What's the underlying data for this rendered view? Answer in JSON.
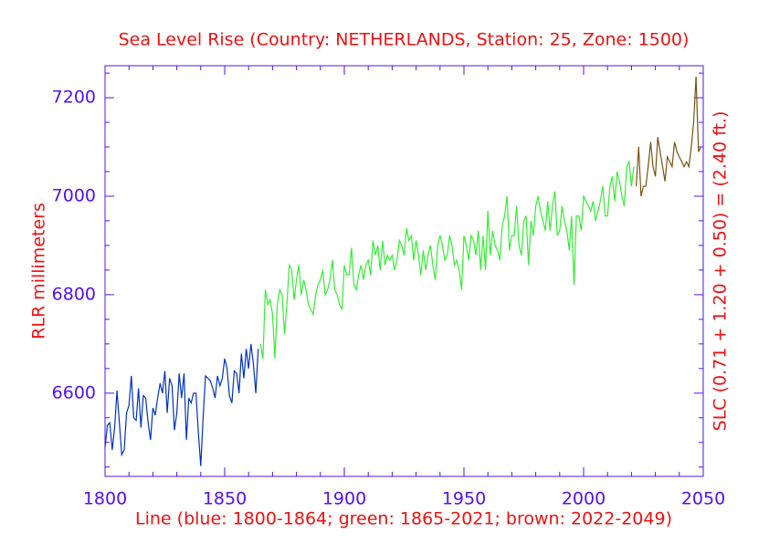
{
  "chart_data": {
    "type": "line",
    "title": "Sea Level Rise (Country: NETHERLANDS, Station: 25, Zone: 1500)",
    "ylabel": "RLR millimeters",
    "y2label": "SLC (0.71 + 1.20 + 0.50) = (2.40 ft.)",
    "xlabel": "Line (blue: 1800-1864; green: 1865-2021; brown: 2022-2049)",
    "xlim": [
      1800,
      2050
    ],
    "ylim": [
      6431,
      7265
    ],
    "xticks": [
      1800,
      1850,
      1900,
      1950,
      2000,
      2050
    ],
    "yticks": [
      6600,
      6800,
      7000,
      7200
    ],
    "xminorticks": [
      1810,
      1820,
      1830,
      1840,
      1860,
      1870,
      1880,
      1890,
      1910,
      1920,
      1930,
      1940,
      1960,
      1970,
      1980,
      1990,
      2010,
      2020,
      2030,
      2040
    ],
    "yminorticks": [
      6450,
      6500,
      6550,
      6650,
      6700,
      6750,
      6850,
      6900,
      6950,
      7050,
      7100,
      7150,
      7250
    ],
    "axis_color": "#5511ee",
    "text_color": "#ee1111",
    "series": [
      {
        "color": "#0033bb",
        "x": [
          1800,
          1801,
          1802,
          1803,
          1804,
          1805,
          1806,
          1807,
          1808,
          1809,
          1810,
          1811,
          1812,
          1813,
          1814,
          1815,
          1816,
          1817,
          1818,
          1819,
          1820,
          1821,
          1822,
          1823,
          1824,
          1825,
          1826,
          1827,
          1828,
          1829,
          1830,
          1831,
          1832,
          1833,
          1834,
          1835,
          1836,
          1837,
          1838,
          1839,
          1840,
          1841,
          1842,
          1843,
          1844,
          1845,
          1846,
          1847,
          1848,
          1849,
          1850,
          1851,
          1852,
          1853,
          1854,
          1855,
          1856,
          1857,
          1858,
          1859,
          1860,
          1861,
          1862,
          1863,
          1864
        ],
        "values": [
          6490,
          6535,
          6540,
          6485,
          6530,
          6605,
          6540,
          6475,
          6485,
          6560,
          6575,
          6635,
          6550,
          6545,
          6610,
          6530,
          6595,
          6590,
          6540,
          6505,
          6570,
          6555,
          6590,
          6620,
          6600,
          6645,
          6560,
          6630,
          6615,
          6525,
          6560,
          6640,
          6590,
          6640,
          6505,
          6590,
          6580,
          6600,
          6600,
          6520,
          6452,
          6550,
          6635,
          6630,
          6625,
          6610,
          6590,
          6635,
          6615,
          6630,
          6670,
          6650,
          6595,
          6580,
          6645,
          6640,
          6600,
          6680,
          6630,
          6690,
          6650,
          6700,
          6660,
          6600,
          6690
        ]
      },
      {
        "color": "#33ee33",
        "x": [
          1865,
          1866,
          1867,
          1868,
          1869,
          1870,
          1871,
          1872,
          1873,
          1874,
          1875,
          1876,
          1877,
          1878,
          1879,
          1880,
          1881,
          1882,
          1883,
          1884,
          1885,
          1886,
          1887,
          1888,
          1889,
          1890,
          1891,
          1892,
          1893,
          1894,
          1895,
          1896,
          1897,
          1898,
          1899,
          1900,
          1901,
          1902,
          1903,
          1904,
          1905,
          1906,
          1907,
          1908,
          1909,
          1910,
          1911,
          1912,
          1913,
          1914,
          1915,
          1916,
          1917,
          1918,
          1919,
          1920,
          1921,
          1922,
          1923,
          1924,
          1925,
          1926,
          1927,
          1928,
          1929,
          1930,
          1931,
          1932,
          1933,
          1934,
          1935,
          1936,
          1937,
          1938,
          1939,
          1940,
          1941,
          1942,
          1943,
          1944,
          1945,
          1946,
          1947,
          1948,
          1949,
          1950,
          1951,
          1952,
          1953,
          1954,
          1955,
          1956,
          1957,
          1958,
          1959,
          1960,
          1961,
          1962,
          1963,
          1964,
          1965,
          1966,
          1967,
          1968,
          1969,
          1970,
          1971,
          1972,
          1973,
          1974,
          1975,
          1976,
          1977,
          1978,
          1979,
          1980,
          1981,
          1982,
          1983,
          1984,
          1985,
          1986,
          1987,
          1988,
          1989,
          1990,
          1991,
          1992,
          1993,
          1994,
          1995,
          1996,
          1997,
          1998,
          1999,
          2000,
          2001,
          2002,
          2003,
          2004,
          2005,
          2006,
          2007,
          2008,
          2009,
          2010,
          2011,
          2012,
          2013,
          2014,
          2015,
          2016,
          2017,
          2018,
          2019,
          2020,
          2021
        ],
        "values": [
          6700,
          6670,
          6810,
          6780,
          6790,
          6760,
          6670,
          6780,
          6810,
          6800,
          6720,
          6780,
          6860,
          6850,
          6790,
          6830,
          6860,
          6800,
          6830,
          6810,
          6780,
          6770,
          6760,
          6800,
          6820,
          6830,
          6850,
          6800,
          6810,
          6830,
          6870,
          6810,
          6800,
          6780,
          6770,
          6860,
          6840,
          6840,
          6895,
          6820,
          6810,
          6840,
          6860,
          6830,
          6860,
          6870,
          6840,
          6910,
          6880,
          6900,
          6850,
          6910,
          6860,
          6880,
          6870,
          6880,
          6850,
          6870,
          6910,
          6900,
          6880,
          6935,
          6910,
          6920,
          6870,
          6910,
          6880,
          6840,
          6890,
          6850,
          6880,
          6900,
          6860,
          6830,
          6900,
          6920,
          6900,
          6870,
          6880,
          6920,
          6900,
          6860,
          6870,
          6850,
          6810,
          6920,
          6900,
          6870,
          6920,
          6910,
          6880,
          6930,
          6850,
          6920,
          6850,
          6970,
          6880,
          6930,
          6900,
          6890,
          6870,
          6940,
          6960,
          7000,
          6890,
          6920,
          6920,
          6980,
          6900,
          6880,
          6950,
          6960,
          6860,
          6950,
          6920,
          6980,
          7000,
          6970,
          6950,
          6930,
          6990,
          6930,
          6980,
          7010,
          6920,
          6930,
          6980,
          6950,
          6930,
          6890,
          6960,
          6820,
          6960,
          6960,
          6930,
          7000,
          6990,
          6980,
          6970,
          6990,
          6950,
          6970,
          6990,
          7020,
          6960,
          6960,
          7020,
          7040,
          6990,
          7050,
          7030,
          7000,
          6980,
          7060,
          7070,
          7020,
          7060
        ]
      },
      {
        "color": "#7a5210",
        "x": [
          2022,
          2023,
          2024,
          2025,
          2026,
          2027,
          2028,
          2029,
          2030,
          2031,
          2032,
          2033,
          2034,
          2035,
          2036,
          2037,
          2038,
          2039,
          2040,
          2041,
          2042,
          2043,
          2044,
          2045,
          2046,
          2047,
          2048,
          2049
        ],
        "values": [
          7020,
          7100,
          7000,
          7020,
          7020,
          7060,
          7110,
          7060,
          7040,
          7120,
          7090,
          7060,
          7030,
          7080,
          7070,
          7060,
          7110,
          7090,
          7080,
          7070,
          7060,
          7070,
          7060,
          7100,
          7150,
          7243,
          7090,
          7100
        ]
      }
    ]
  }
}
